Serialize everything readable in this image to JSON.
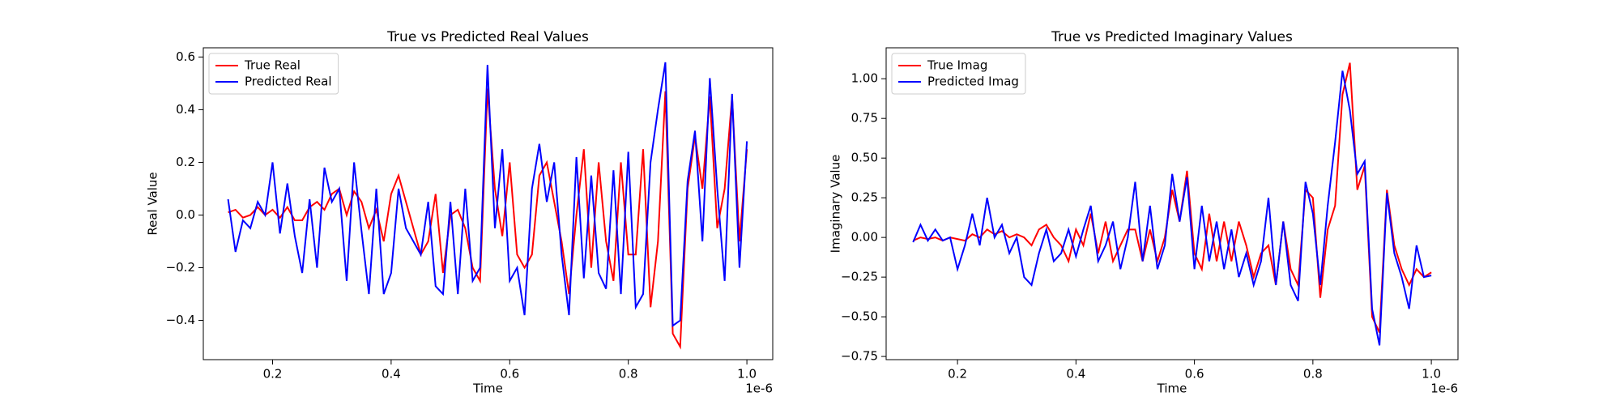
{
  "chart_data": [
    {
      "type": "line",
      "title": "True vs Predicted Real Values",
      "xlabel": "Time",
      "ylabel": "Real Value",
      "x_offset_label": "1e-6",
      "x": [
        0.125,
        0.1375,
        0.15,
        0.1625,
        0.175,
        0.1875,
        0.2,
        0.2125,
        0.225,
        0.2375,
        0.25,
        0.2625,
        0.275,
        0.2875,
        0.3,
        0.3125,
        0.325,
        0.3375,
        0.35,
        0.3625,
        0.375,
        0.3875,
        0.4,
        0.4125,
        0.425,
        0.4375,
        0.45,
        0.4625,
        0.475,
        0.4875,
        0.5,
        0.5125,
        0.525,
        0.5375,
        0.55,
        0.5625,
        0.575,
        0.5875,
        0.6,
        0.6125,
        0.625,
        0.6375,
        0.65,
        0.6625,
        0.675,
        0.6875,
        0.7,
        0.7125,
        0.725,
        0.7375,
        0.75,
        0.7625,
        0.775,
        0.7875,
        0.8,
        0.8125,
        0.825,
        0.8375,
        0.85,
        0.8625,
        0.875,
        0.8875,
        0.9,
        0.9125,
        0.925,
        0.9375,
        0.95,
        0.9625,
        0.975,
        0.9875,
        1.0
      ],
      "series": [
        {
          "name": "True Real",
          "color": "#ff0000",
          "values": [
            0.01,
            0.02,
            -0.01,
            0.0,
            0.03,
            0.0,
            0.02,
            -0.01,
            0.03,
            -0.02,
            -0.02,
            0.03,
            0.05,
            0.02,
            0.08,
            0.1,
            0.0,
            0.09,
            0.05,
            -0.05,
            0.02,
            -0.1,
            0.08,
            0.15,
            0.05,
            -0.05,
            -0.15,
            -0.1,
            0.08,
            -0.22,
            0.0,
            0.02,
            -0.05,
            -0.2,
            -0.25,
            0.48,
            0.1,
            -0.08,
            0.2,
            -0.15,
            -0.2,
            -0.15,
            0.15,
            0.2,
            0.05,
            -0.1,
            -0.3,
            0.0,
            0.25,
            -0.2,
            0.2,
            -0.1,
            -0.25,
            0.2,
            -0.15,
            -0.15,
            0.25,
            -0.35,
            -0.1,
            0.47,
            -0.45,
            -0.5,
            0.1,
            0.3,
            0.1,
            0.45,
            -0.05,
            0.1,
            0.45,
            -0.1,
            0.25
          ]
        },
        {
          "name": "Predicted Real",
          "color": "#0000ff",
          "values": [
            0.06,
            -0.14,
            -0.02,
            -0.05,
            0.05,
            0.0,
            0.2,
            -0.07,
            0.12,
            -0.08,
            -0.22,
            0.06,
            -0.2,
            0.18,
            0.05,
            0.1,
            -0.25,
            0.2,
            -0.06,
            -0.3,
            0.1,
            -0.3,
            -0.22,
            0.1,
            -0.05,
            -0.1,
            -0.15,
            0.05,
            -0.27,
            -0.3,
            0.05,
            -0.3,
            0.1,
            -0.25,
            -0.2,
            0.57,
            -0.05,
            0.25,
            -0.25,
            -0.2,
            -0.38,
            0.1,
            0.27,
            0.05,
            0.2,
            -0.15,
            -0.38,
            0.22,
            -0.24,
            0.15,
            -0.22,
            -0.28,
            0.17,
            -0.3,
            0.24,
            -0.35,
            -0.3,
            0.2,
            0.4,
            0.58,
            -0.42,
            -0.4,
            0.13,
            0.32,
            -0.1,
            0.52,
            0.1,
            -0.25,
            0.46,
            -0.2,
            0.28
          ]
        }
      ],
      "xlim": [
        0.0832,
        1.0436
      ],
      "ylim": [
        -0.549,
        0.635
      ],
      "xticks": [
        0.2,
        0.4,
        0.6,
        0.8,
        {
          "value": 1,
          "label": "1.0"
        }
      ],
      "yticks": [
        {
          "value": -0.4,
          "label": "−0.4"
        },
        {
          "value": -0.2,
          "label": "−0.2"
        },
        {
          "value": 0,
          "label": "0.0"
        },
        0.2,
        0.4,
        0.6
      ],
      "legend": "upper left"
    },
    {
      "type": "line",
      "title": "True vs Predicted Imaginary Values",
      "xlabel": "Time",
      "ylabel": "Imaginary Value",
      "x_offset_label": "1e-6",
      "x": [
        0.125,
        0.1375,
        0.15,
        0.1625,
        0.175,
        0.1875,
        0.2,
        0.2125,
        0.225,
        0.2375,
        0.25,
        0.2625,
        0.275,
        0.2875,
        0.3,
        0.3125,
        0.325,
        0.3375,
        0.35,
        0.3625,
        0.375,
        0.3875,
        0.4,
        0.4125,
        0.425,
        0.4375,
        0.45,
        0.4625,
        0.475,
        0.4875,
        0.5,
        0.5125,
        0.525,
        0.5375,
        0.55,
        0.5625,
        0.575,
        0.5875,
        0.6,
        0.6125,
        0.625,
        0.6375,
        0.65,
        0.6625,
        0.675,
        0.6875,
        0.7,
        0.7125,
        0.725,
        0.7375,
        0.75,
        0.7625,
        0.775,
        0.7875,
        0.8,
        0.8125,
        0.825,
        0.8375,
        0.85,
        0.8625,
        0.875,
        0.8875,
        0.9,
        0.9125,
        0.925,
        0.9375,
        0.95,
        0.9625,
        0.975,
        0.9875,
        1.0
      ],
      "series": [
        {
          "name": "True Imag",
          "color": "#ff0000",
          "values": [
            -0.02,
            0.0,
            -0.01,
            0.0,
            -0.02,
            0.0,
            -0.01,
            -0.02,
            0.02,
            0.0,
            0.05,
            0.02,
            0.04,
            0.0,
            0.02,
            0.0,
            -0.05,
            0.05,
            0.08,
            0.0,
            -0.05,
            -0.15,
            0.05,
            -0.05,
            0.15,
            -0.1,
            0.1,
            -0.15,
            -0.05,
            0.05,
            0.05,
            -0.15,
            0.05,
            -0.15,
            0.0,
            0.3,
            0.1,
            0.42,
            -0.1,
            -0.2,
            0.15,
            -0.15,
            0.1,
            -0.15,
            0.1,
            -0.05,
            -0.25,
            -0.1,
            -0.05,
            -0.3,
            0.1,
            -0.2,
            -0.3,
            0.3,
            0.25,
            -0.38,
            0.05,
            0.2,
            0.9,
            1.1,
            0.3,
            0.45,
            -0.5,
            -0.6,
            0.3,
            -0.05,
            -0.2,
            -0.3,
            -0.2,
            -0.25,
            -0.22
          ]
        },
        {
          "name": "Predicted Imag",
          "color": "#0000ff",
          "values": [
            -0.03,
            0.08,
            -0.02,
            0.05,
            -0.02,
            0.0,
            -0.2,
            -0.05,
            0.15,
            -0.05,
            0.25,
            0.0,
            0.08,
            -0.1,
            0.0,
            -0.25,
            -0.3,
            -0.1,
            0.05,
            -0.15,
            -0.1,
            0.05,
            -0.12,
            0.05,
            0.2,
            -0.15,
            -0.05,
            0.1,
            -0.2,
            0.0,
            0.35,
            -0.15,
            0.2,
            -0.2,
            -0.05,
            0.4,
            0.1,
            0.38,
            -0.2,
            0.2,
            -0.15,
            0.1,
            -0.2,
            0.05,
            -0.25,
            -0.1,
            -0.3,
            -0.15,
            0.25,
            -0.3,
            0.1,
            -0.3,
            -0.4,
            0.35,
            0.15,
            -0.3,
            0.2,
            0.6,
            1.05,
            0.8,
            0.4,
            0.48,
            -0.45,
            -0.68,
            0.28,
            -0.1,
            -0.25,
            -0.45,
            -0.05,
            -0.25,
            -0.24
          ]
        }
      ],
      "xlim": [
        0.0795,
        1.045
      ],
      "ylim": [
        -0.77,
        1.195
      ],
      "xticks": [
        0.2,
        0.4,
        0.6,
        0.8,
        {
          "value": 1,
          "label": "1.0"
        }
      ],
      "yticks": [
        {
          "value": -0.75,
          "label": "−0.75"
        },
        {
          "value": -0.5,
          "label": "−0.50"
        },
        {
          "value": -0.25,
          "label": "−0.25"
        },
        {
          "value": 0,
          "label": "0.00"
        },
        {
          "value": 0.25,
          "label": "0.25"
        },
        {
          "value": 0.5,
          "label": "0.50"
        },
        {
          "value": 0.75,
          "label": "0.75"
        },
        {
          "value": 1,
          "label": "1.00"
        }
      ],
      "legend": "upper left"
    }
  ]
}
